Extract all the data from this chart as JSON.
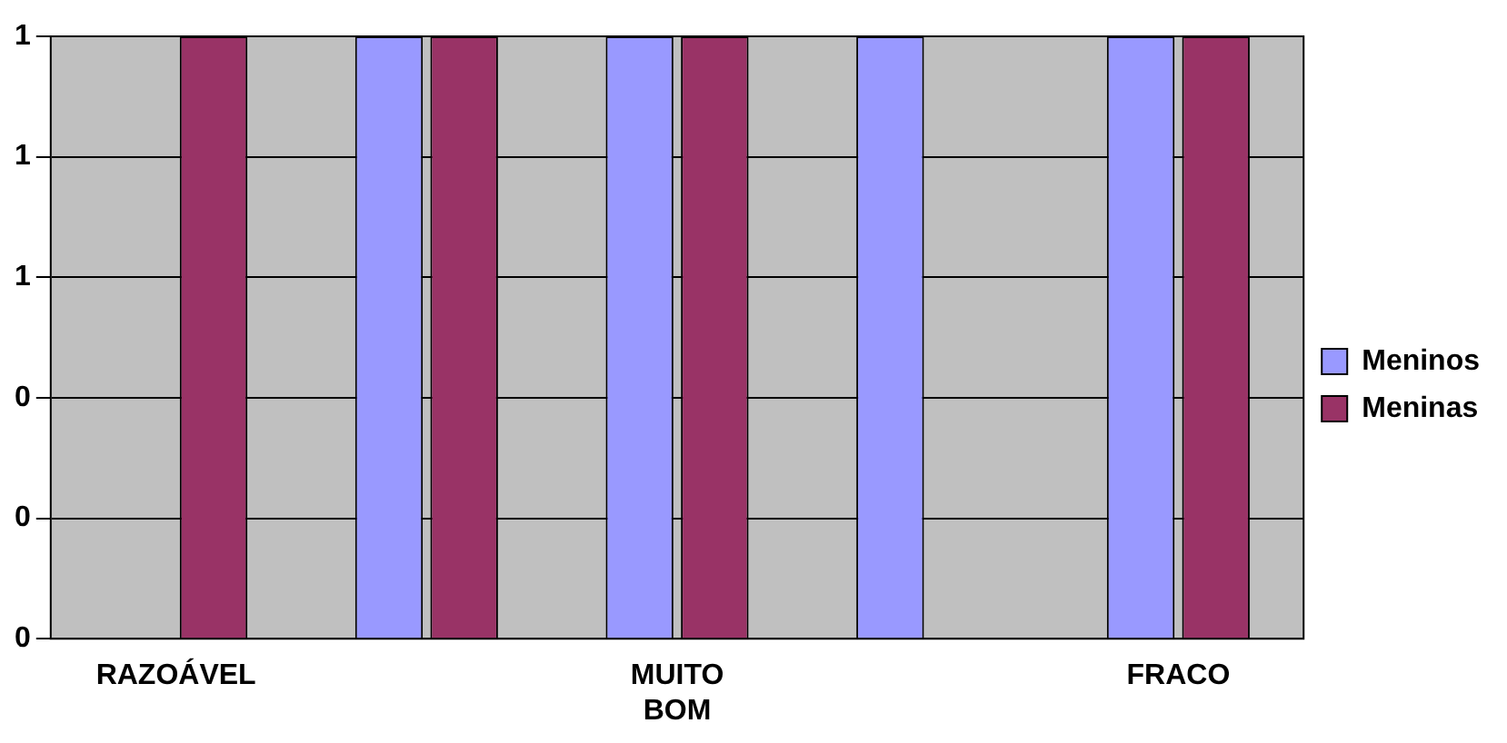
{
  "chart_data": {
    "type": "bar",
    "categories": [
      "RAZOÁVEL",
      null,
      "MUITO BOM",
      null,
      "FRACO"
    ],
    "series": [
      {
        "name": "Meninos",
        "color": "#9999ff",
        "values": [
          null,
          1,
          1,
          1,
          1
        ]
      },
      {
        "name": "Meninas",
        "color": "#993366",
        "values": [
          1,
          1,
          1,
          null,
          1
        ]
      }
    ],
    "ylim": [
      0,
      1
    ],
    "yticks": [
      {
        "value": 0,
        "label": "0"
      },
      {
        "value": 0.2,
        "label": "0"
      },
      {
        "value": 0.4,
        "label": "0"
      },
      {
        "value": 0.6,
        "label": "1"
      },
      {
        "value": 0.8,
        "label": "1"
      },
      {
        "value": 1,
        "label": "1"
      }
    ],
    "grid": "y",
    "legend": "right"
  }
}
